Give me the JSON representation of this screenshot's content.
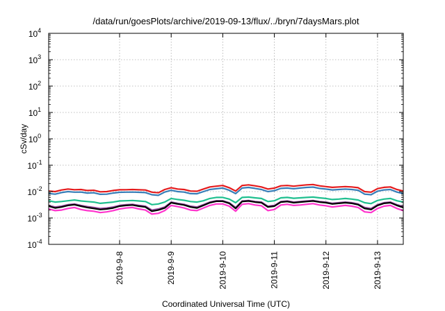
{
  "chart_data": {
    "type": "line",
    "title": "/data/run/goesPlots/archive/2019-09-13/flux/../bryn/7daysMars.plot",
    "xlabel": "Coordinated Universal Time (UTC)",
    "ylabel": "cSv/day",
    "yscale": "log",
    "ylim": [
      0.0001,
      10000
    ],
    "xlim": [
      "2019-09-07T03:00",
      "2019-09-13T23:59"
    ],
    "grid": true,
    "y_ticks": [
      {
        "base": "10",
        "exp": "-4"
      },
      {
        "base": "10",
        "exp": "-3"
      },
      {
        "base": "10",
        "exp": "-2"
      },
      {
        "base": "10",
        "exp": "-1"
      },
      {
        "base": "10",
        "exp": "0"
      },
      {
        "base": "10",
        "exp": "1"
      },
      {
        "base": "10",
        "exp": "2"
      },
      {
        "base": "10",
        "exp": "3"
      },
      {
        "base": "10",
        "exp": "4"
      }
    ],
    "x_ticks": [
      "2019-9-8",
      "2019-9-9",
      "2019-9-10",
      "2019-9-11",
      "2019-9-12",
      "2019-9-13"
    ],
    "x": [
      "09-07 03:00",
      "09-07 06:00",
      "09-07 09:00",
      "09-07 12:00",
      "09-07 15:00",
      "09-07 18:00",
      "09-07 21:00",
      "09-08 00:00",
      "09-08 03:00",
      "09-08 06:00",
      "09-08 09:00",
      "09-08 12:00",
      "09-08 15:00",
      "09-08 18:00",
      "09-08 21:00",
      "09-09 00:00",
      "09-09 03:00",
      "09-09 06:00",
      "09-09 09:00",
      "09-09 12:00",
      "09-09 15:00",
      "09-09 18:00",
      "09-09 21:00",
      "09-10 00:00",
      "09-10 03:00",
      "09-10 06:00",
      "09-10 09:00",
      "09-10 12:00",
      "09-10 15:00",
      "09-10 18:00",
      "09-10 21:00",
      "09-11 00:00",
      "09-11 03:00",
      "09-11 06:00",
      "09-11 09:00",
      "09-11 12:00",
      "09-11 15:00",
      "09-11 18:00",
      "09-11 21:00",
      "09-12 00:00",
      "09-12 03:00",
      "09-12 06:00",
      "09-12 09:00",
      "09-12 12:00",
      "09-12 15:00",
      "09-12 18:00",
      "09-12 21:00",
      "09-13 00:00",
      "09-13 03:00",
      "09-13 06:00",
      "09-13 09:00",
      "09-13 12:00",
      "09-13 15:00",
      "09-13 18:00",
      "09-13 21:00",
      "09-13 23:59"
    ],
    "series": [
      {
        "color": "#e41a1c",
        "values": [
          0.0105,
          0.01,
          0.0115,
          0.0125,
          0.0118,
          0.012,
          0.011,
          0.0112,
          0.0098,
          0.01,
          0.011,
          0.0117,
          0.0118,
          0.012,
          0.0117,
          0.0115,
          0.0095,
          0.009,
          0.012,
          0.014,
          0.0125,
          0.012,
          0.0105,
          0.0103,
          0.0125,
          0.015,
          0.016,
          0.017,
          0.014,
          0.0105,
          0.017,
          0.018,
          0.0165,
          0.015,
          0.0125,
          0.0135,
          0.0165,
          0.017,
          0.016,
          0.017,
          0.018,
          0.0185,
          0.0165,
          0.0155,
          0.0145,
          0.015,
          0.0155,
          0.015,
          0.014,
          0.01,
          0.0095,
          0.013,
          0.0145,
          0.015,
          0.012,
          0.0105
        ]
      },
      {
        "color": "#377eb8",
        "values": [
          0.0085,
          0.008,
          0.0092,
          0.01,
          0.0095,
          0.0096,
          0.0088,
          0.009,
          0.0079,
          0.008,
          0.0088,
          0.0094,
          0.0095,
          0.0096,
          0.0094,
          0.0092,
          0.0076,
          0.0072,
          0.0096,
          0.0112,
          0.01,
          0.0096,
          0.0084,
          0.0083,
          0.01,
          0.012,
          0.0128,
          0.0136,
          0.0112,
          0.0084,
          0.0136,
          0.0144,
          0.0132,
          0.012,
          0.01,
          0.0108,
          0.0132,
          0.0136,
          0.0128,
          0.0136,
          0.0144,
          0.0148,
          0.0132,
          0.0124,
          0.0116,
          0.012,
          0.0124,
          0.012,
          0.0112,
          0.008,
          0.0076,
          0.0104,
          0.0116,
          0.012,
          0.0096,
          0.0084
        ]
      },
      {
        "color": "#1fbf8f",
        "values": [
          0.0045,
          0.004,
          0.0042,
          0.0045,
          0.0048,
          0.0044,
          0.0042,
          0.004,
          0.0036,
          0.0038,
          0.004,
          0.0044,
          0.0045,
          0.0046,
          0.0044,
          0.0042,
          0.0032,
          0.0034,
          0.004,
          0.0055,
          0.005,
          0.0047,
          0.0042,
          0.004,
          0.0045,
          0.0055,
          0.006,
          0.006,
          0.0052,
          0.0038,
          0.006,
          0.0062,
          0.0058,
          0.0055,
          0.0042,
          0.0045,
          0.0058,
          0.006,
          0.0056,
          0.0058,
          0.006,
          0.0062,
          0.0058,
          0.0055,
          0.005,
          0.0052,
          0.0055,
          0.0052,
          0.0048,
          0.0038,
          0.0035,
          0.0046,
          0.0052,
          0.0055,
          0.0045,
          0.004
        ]
      },
      {
        "color": "#984ea3",
        "values": [
          0.003,
          0.0026,
          0.0028,
          0.0032,
          0.0034,
          0.003,
          0.0027,
          0.0025,
          0.0023,
          0.0024,
          0.0026,
          0.003,
          0.0032,
          0.0033,
          0.003,
          0.0028,
          0.002,
          0.0022,
          0.0026,
          0.004,
          0.0036,
          0.0033,
          0.0028,
          0.0026,
          0.0032,
          0.004,
          0.0045,
          0.0045,
          0.0038,
          0.0025,
          0.0044,
          0.0046,
          0.0042,
          0.004,
          0.0028,
          0.003,
          0.0042,
          0.0044,
          0.004,
          0.0042,
          0.0044,
          0.0046,
          0.0042,
          0.004,
          0.0036,
          0.0038,
          0.004,
          0.0038,
          0.0034,
          0.0025,
          0.0023,
          0.0032,
          0.0038,
          0.004,
          0.0032,
          0.0027
        ]
      },
      {
        "color": "#000000",
        "values": [
          0.0028,
          0.0024,
          0.0026,
          0.003,
          0.0032,
          0.0028,
          0.0025,
          0.0023,
          0.0021,
          0.0022,
          0.0024,
          0.0028,
          0.003,
          0.0031,
          0.0028,
          0.0026,
          0.0018,
          0.002,
          0.0024,
          0.0038,
          0.0034,
          0.0031,
          0.0026,
          0.0024,
          0.003,
          0.0038,
          0.0043,
          0.0043,
          0.0036,
          0.0023,
          0.0042,
          0.0044,
          0.004,
          0.0038,
          0.0026,
          0.0028,
          0.004,
          0.0042,
          0.0038,
          0.004,
          0.0042,
          0.0044,
          0.004,
          0.0038,
          0.0034,
          0.0036,
          0.0038,
          0.0036,
          0.0032,
          0.0023,
          0.0021,
          0.003,
          0.0036,
          0.0038,
          0.003,
          0.0025
        ]
      },
      {
        "color": "#ff33cc",
        "values": [
          0.0022,
          0.0019,
          0.002,
          0.0023,
          0.0025,
          0.0021,
          0.0019,
          0.0018,
          0.0016,
          0.0017,
          0.0019,
          0.0022,
          0.0024,
          0.0025,
          0.0022,
          0.002,
          0.0014,
          0.0015,
          0.0019,
          0.003,
          0.0027,
          0.0024,
          0.002,
          0.0019,
          0.0024,
          0.003,
          0.0034,
          0.0034,
          0.0028,
          0.0018,
          0.0033,
          0.0035,
          0.0031,
          0.0029,
          0.0019,
          0.0021,
          0.0031,
          0.0033,
          0.003,
          0.0031,
          0.0033,
          0.0035,
          0.0031,
          0.0029,
          0.0026,
          0.0028,
          0.003,
          0.0028,
          0.0025,
          0.0017,
          0.0016,
          0.0023,
          0.0028,
          0.003,
          0.0023,
          0.0019
        ]
      }
    ]
  }
}
